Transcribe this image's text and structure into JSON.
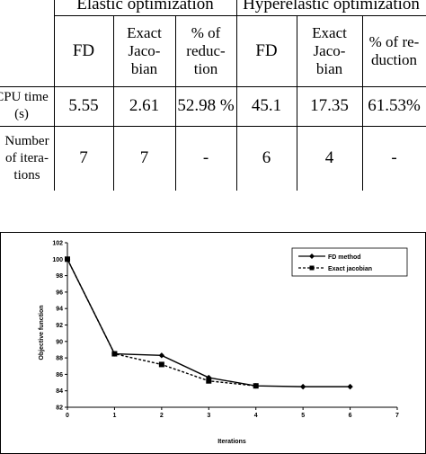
{
  "table": {
    "groups": {
      "elastic": "Elastic optimization",
      "hyperelastic": "Hyperelastic optimization"
    },
    "col_headers": {
      "fd": "FD",
      "jac": [
        "Exact",
        "Jaco-",
        "bian"
      ],
      "red_elastic": [
        "% of",
        "reduc-",
        "tion"
      ],
      "red_hyper": [
        "% of re-",
        "duction"
      ]
    },
    "rows": {
      "cpu": {
        "label": [
          "CPU time",
          "(s)"
        ],
        "values": [
          "5.55",
          "2.61",
          "52.98 %",
          "45.1",
          "17.35",
          "61.53%"
        ]
      },
      "iter": {
        "label": [
          "Number",
          "of itera-",
          "tions"
        ],
        "values": [
          "7",
          "7",
          "-",
          "6",
          "4",
          "-"
        ]
      }
    }
  },
  "chart_data": {
    "type": "line",
    "xlabel": "Iterations",
    "ylabel": "Objective function",
    "xlim": [
      0,
      7
    ],
    "ylim": [
      82,
      102
    ],
    "xticks": [
      "0",
      "1",
      "2",
      "3",
      "4",
      "5",
      "6",
      "7"
    ],
    "yticks": [
      "82",
      "84",
      "86",
      "88",
      "90",
      "92",
      "94",
      "96",
      "98",
      "100",
      "102"
    ],
    "grid": false,
    "legend_position": "top-right",
    "series": [
      {
        "name": "FD method",
        "style": "solid",
        "marker": "diamond",
        "color": "#000000",
        "x": [
          0,
          1,
          2,
          3,
          4,
          5,
          6
        ],
        "y": [
          100,
          88.5,
          88.3,
          85.6,
          84.6,
          84.5,
          84.5
        ]
      },
      {
        "name": "Exact jacobian",
        "style": "dashed",
        "marker": "square",
        "color": "#000000",
        "x": [
          0,
          1,
          2,
          3,
          4
        ],
        "y": [
          100,
          88.5,
          87.2,
          85.2,
          84.6
        ]
      }
    ]
  }
}
